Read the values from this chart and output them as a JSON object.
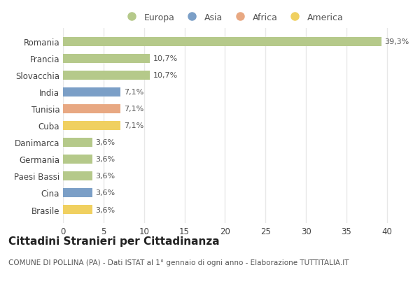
{
  "categories": [
    "Brasile",
    "Cina",
    "Paesi Bassi",
    "Germania",
    "Danimarca",
    "Cuba",
    "Tunisia",
    "India",
    "Slovacchia",
    "Francia",
    "Romania"
  ],
  "values": [
    3.6,
    3.6,
    3.6,
    3.6,
    3.6,
    7.1,
    7.1,
    7.1,
    10.7,
    10.7,
    39.3
  ],
  "labels": [
    "3,6%",
    "3,6%",
    "3,6%",
    "3,6%",
    "3,6%",
    "7,1%",
    "7,1%",
    "7,1%",
    "10,7%",
    "10,7%",
    "39,3%"
  ],
  "colors": [
    "#f0d060",
    "#7b9fc7",
    "#b5c98a",
    "#b5c98a",
    "#b5c98a",
    "#f0d060",
    "#e8a882",
    "#7b9fc7",
    "#b5c98a",
    "#b5c98a",
    "#b5c98a"
  ],
  "legend_labels": [
    "Europa",
    "Asia",
    "Africa",
    "America"
  ],
  "legend_colors": [
    "#b5c98a",
    "#7b9fc7",
    "#e8a882",
    "#f0d060"
  ],
  "title": "Cittadini Stranieri per Cittadinanza",
  "subtitle": "COMUNE DI POLLINA (PA) - Dati ISTAT al 1° gennaio di ogni anno - Elaborazione TUTTITALIA.IT",
  "xlim": [
    0,
    42
  ],
  "xticks": [
    0,
    5,
    10,
    15,
    20,
    25,
    30,
    35,
    40
  ],
  "background_color": "#ffffff",
  "bar_height": 0.55,
  "grid_color": "#e0e0e0",
  "label_fontsize": 8,
  "tick_fontsize": 8.5,
  "title_fontsize": 11,
  "subtitle_fontsize": 7.5
}
